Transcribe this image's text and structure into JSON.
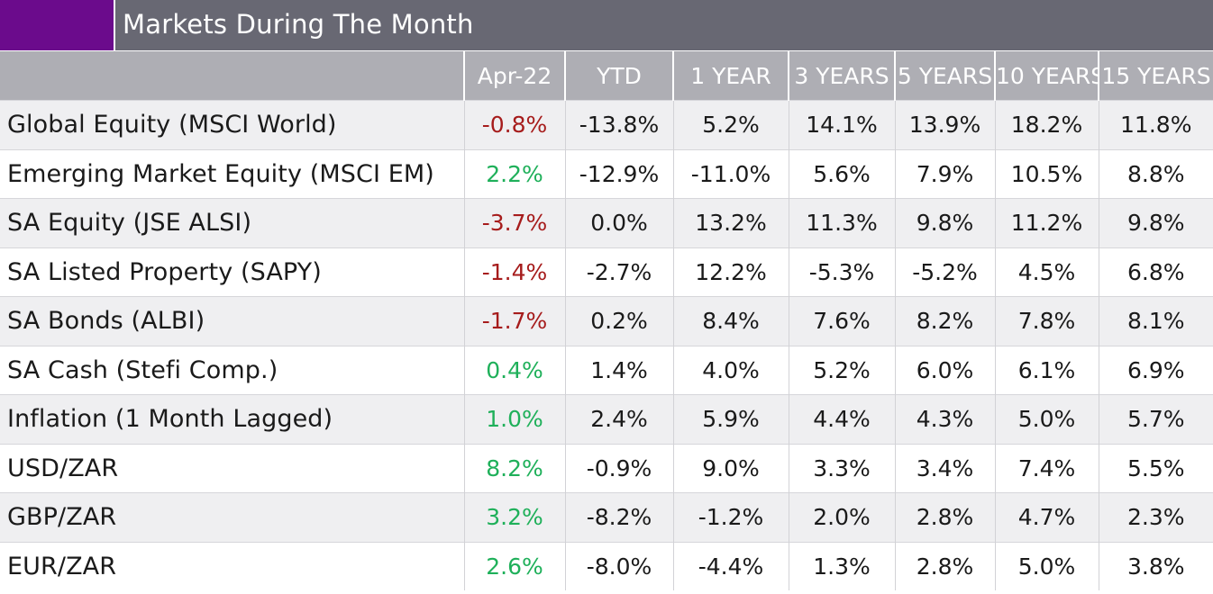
{
  "header": {
    "title": "Markets During The Month"
  },
  "colors": {
    "accent": "#6b0b8c",
    "title_bar": "#686873",
    "column_header_bg": "#aeaeb4",
    "negative": "#a61c1c",
    "positive": "#1fb05a"
  },
  "table": {
    "columns": [
      "",
      "Apr-22",
      "YTD",
      "1 YEAR",
      "3 YEARS",
      "5 YEARS",
      "10 YEARS",
      "15 YEARS"
    ],
    "rows": [
      {
        "name": "Global Equity (MSCI World)",
        "month": "-0.8%",
        "month_sign": "neg",
        "ytd": "-13.8%",
        "y1": "5.2%",
        "y3": "14.1%",
        "y5": "13.9%",
        "y10": "18.2%",
        "y15": "11.8%"
      },
      {
        "name": "Emerging Market Equity (MSCI EM)",
        "month": "2.2%",
        "month_sign": "pos",
        "ytd": "-12.9%",
        "y1": "-11.0%",
        "y3": "5.6%",
        "y5": "7.9%",
        "y10": "10.5%",
        "y15": "8.8%"
      },
      {
        "name": "SA Equity (JSE ALSI)",
        "month": "-3.7%",
        "month_sign": "neg",
        "ytd": "0.0%",
        "y1": "13.2%",
        "y3": "11.3%",
        "y5": "9.8%",
        "y10": "11.2%",
        "y15": "9.8%"
      },
      {
        "name": "SA Listed Property (SAPY)",
        "month": "-1.4%",
        "month_sign": "neg",
        "ytd": "-2.7%",
        "y1": "12.2%",
        "y3": "-5.3%",
        "y5": "-5.2%",
        "y10": "4.5%",
        "y15": "6.8%"
      },
      {
        "name": "SA Bonds (ALBI)",
        "month": "-1.7%",
        "month_sign": "neg",
        "ytd": "0.2%",
        "y1": "8.4%",
        "y3": "7.6%",
        "y5": "8.2%",
        "y10": "7.8%",
        "y15": "8.1%"
      },
      {
        "name": "SA Cash (Stefi Comp.)",
        "month": "0.4%",
        "month_sign": "pos",
        "ytd": "1.4%",
        "y1": "4.0%",
        "y3": "5.2%",
        "y5": "6.0%",
        "y10": "6.1%",
        "y15": "6.9%"
      },
      {
        "name": "Inflation (1 Month Lagged)",
        "month": "1.0%",
        "month_sign": "pos",
        "ytd": "2.4%",
        "y1": "5.9%",
        "y3": "4.4%",
        "y5": "4.3%",
        "y10": "5.0%",
        "y15": "5.7%"
      },
      {
        "name": "USD/ZAR",
        "month": "8.2%",
        "month_sign": "pos",
        "ytd": "-0.9%",
        "y1": "9.0%",
        "y3": "3.3%",
        "y5": "3.4%",
        "y10": "7.4%",
        "y15": "5.5%"
      },
      {
        "name": "GBP/ZAR",
        "month": "3.2%",
        "month_sign": "pos",
        "ytd": "-8.2%",
        "y1": "-1.2%",
        "y3": "2.0%",
        "y5": "2.8%",
        "y10": "4.7%",
        "y15": "2.3%"
      },
      {
        "name": "EUR/ZAR",
        "month": "2.6%",
        "month_sign": "pos",
        "ytd": "-8.0%",
        "y1": "-4.4%",
        "y3": "1.3%",
        "y5": "2.8%",
        "y10": "5.0%",
        "y15": "3.8%"
      }
    ]
  }
}
